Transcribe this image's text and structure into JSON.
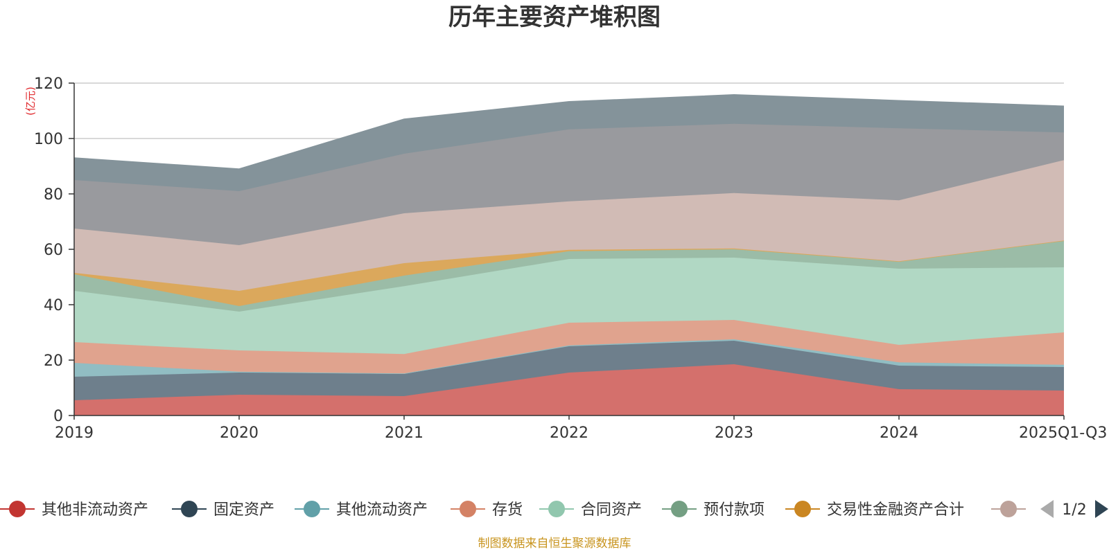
{
  "chart_data": {
    "type": "area",
    "stacked": true,
    "title": "历年主要资产堆积图",
    "unit_label": "(亿元)",
    "categories": [
      "2019",
      "2020",
      "2021",
      "2022",
      "2023",
      "2024",
      "2025Q1-Q3"
    ],
    "ylim": [
      0,
      120
    ],
    "yticks": [
      0,
      20,
      40,
      60,
      80,
      100,
      120
    ],
    "grid": true,
    "series": [
      {
        "name": "其他非流动资产",
        "color": "#d4706c",
        "legend_color": "#c23531",
        "values": [
          5.5,
          7.5,
          7.0,
          15.5,
          18.5,
          9.5,
          9.0
        ]
      },
      {
        "name": "固定资产",
        "color": "#6e7f8c",
        "legend_color": "#2f4554",
        "values": [
          8.5,
          8.0,
          8.0,
          9.5,
          8.5,
          8.5,
          8.5
        ]
      },
      {
        "name": "其他流动资产",
        "color": "#91bdc3",
        "legend_color": "#61a0a8",
        "values": [
          5.0,
          0.3,
          0.2,
          0.3,
          0.5,
          1.2,
          0.8
        ]
      },
      {
        "name": "存货",
        "color": "#e0a38e",
        "legend_color": "#d48265",
        "values": [
          7.5,
          7.7,
          7.0,
          8.2,
          7.0,
          6.3,
          11.7
        ]
      },
      {
        "name": "合同资产",
        "color": "#b1d8c4",
        "legend_color": "#91c7ae",
        "values": [
          18.5,
          14.0,
          24.5,
          23.0,
          22.5,
          27.5,
          23.5
        ]
      },
      {
        "name": "预付款项",
        "color": "#9bbca7",
        "legend_color": "#749f83",
        "values": [
          6.0,
          2.0,
          3.8,
          2.8,
          3.0,
          2.5,
          9.5
        ]
      },
      {
        "name": "交易性金融资产合计",
        "color": "#dba85c",
        "legend_color": "#ca8622",
        "values": [
          0.5,
          5.5,
          4.5,
          0.5,
          0.3,
          0.2,
          0.2
        ]
      },
      {
        "name": "",
        "color": "#d1bbb5",
        "legend_color": "#bda29a",
        "values": [
          16.0,
          16.5,
          18.0,
          17.5,
          20.0,
          22.0,
          29.0
        ]
      },
      {
        "name": "",
        "color": "#999a9e",
        "legend_color": "#999a9e",
        "values": [
          17.5,
          19.5,
          21.5,
          26.0,
          25.0,
          26.0,
          10.0
        ]
      },
      {
        "name": "",
        "color": "#84939a",
        "legend_color": "#84939a",
        "values": [
          8.0,
          8.0,
          12.5,
          10.0,
          10.5,
          10.0,
          9.5
        ]
      }
    ],
    "legend_visible_count": 8,
    "legend_position": "bottom"
  },
  "legend_pager": {
    "text": "1/2",
    "prev_icon": "triangle-left-icon",
    "next_icon": "triangle-right-icon"
  },
  "source_note": "制图数据来自恒生聚源数据库"
}
